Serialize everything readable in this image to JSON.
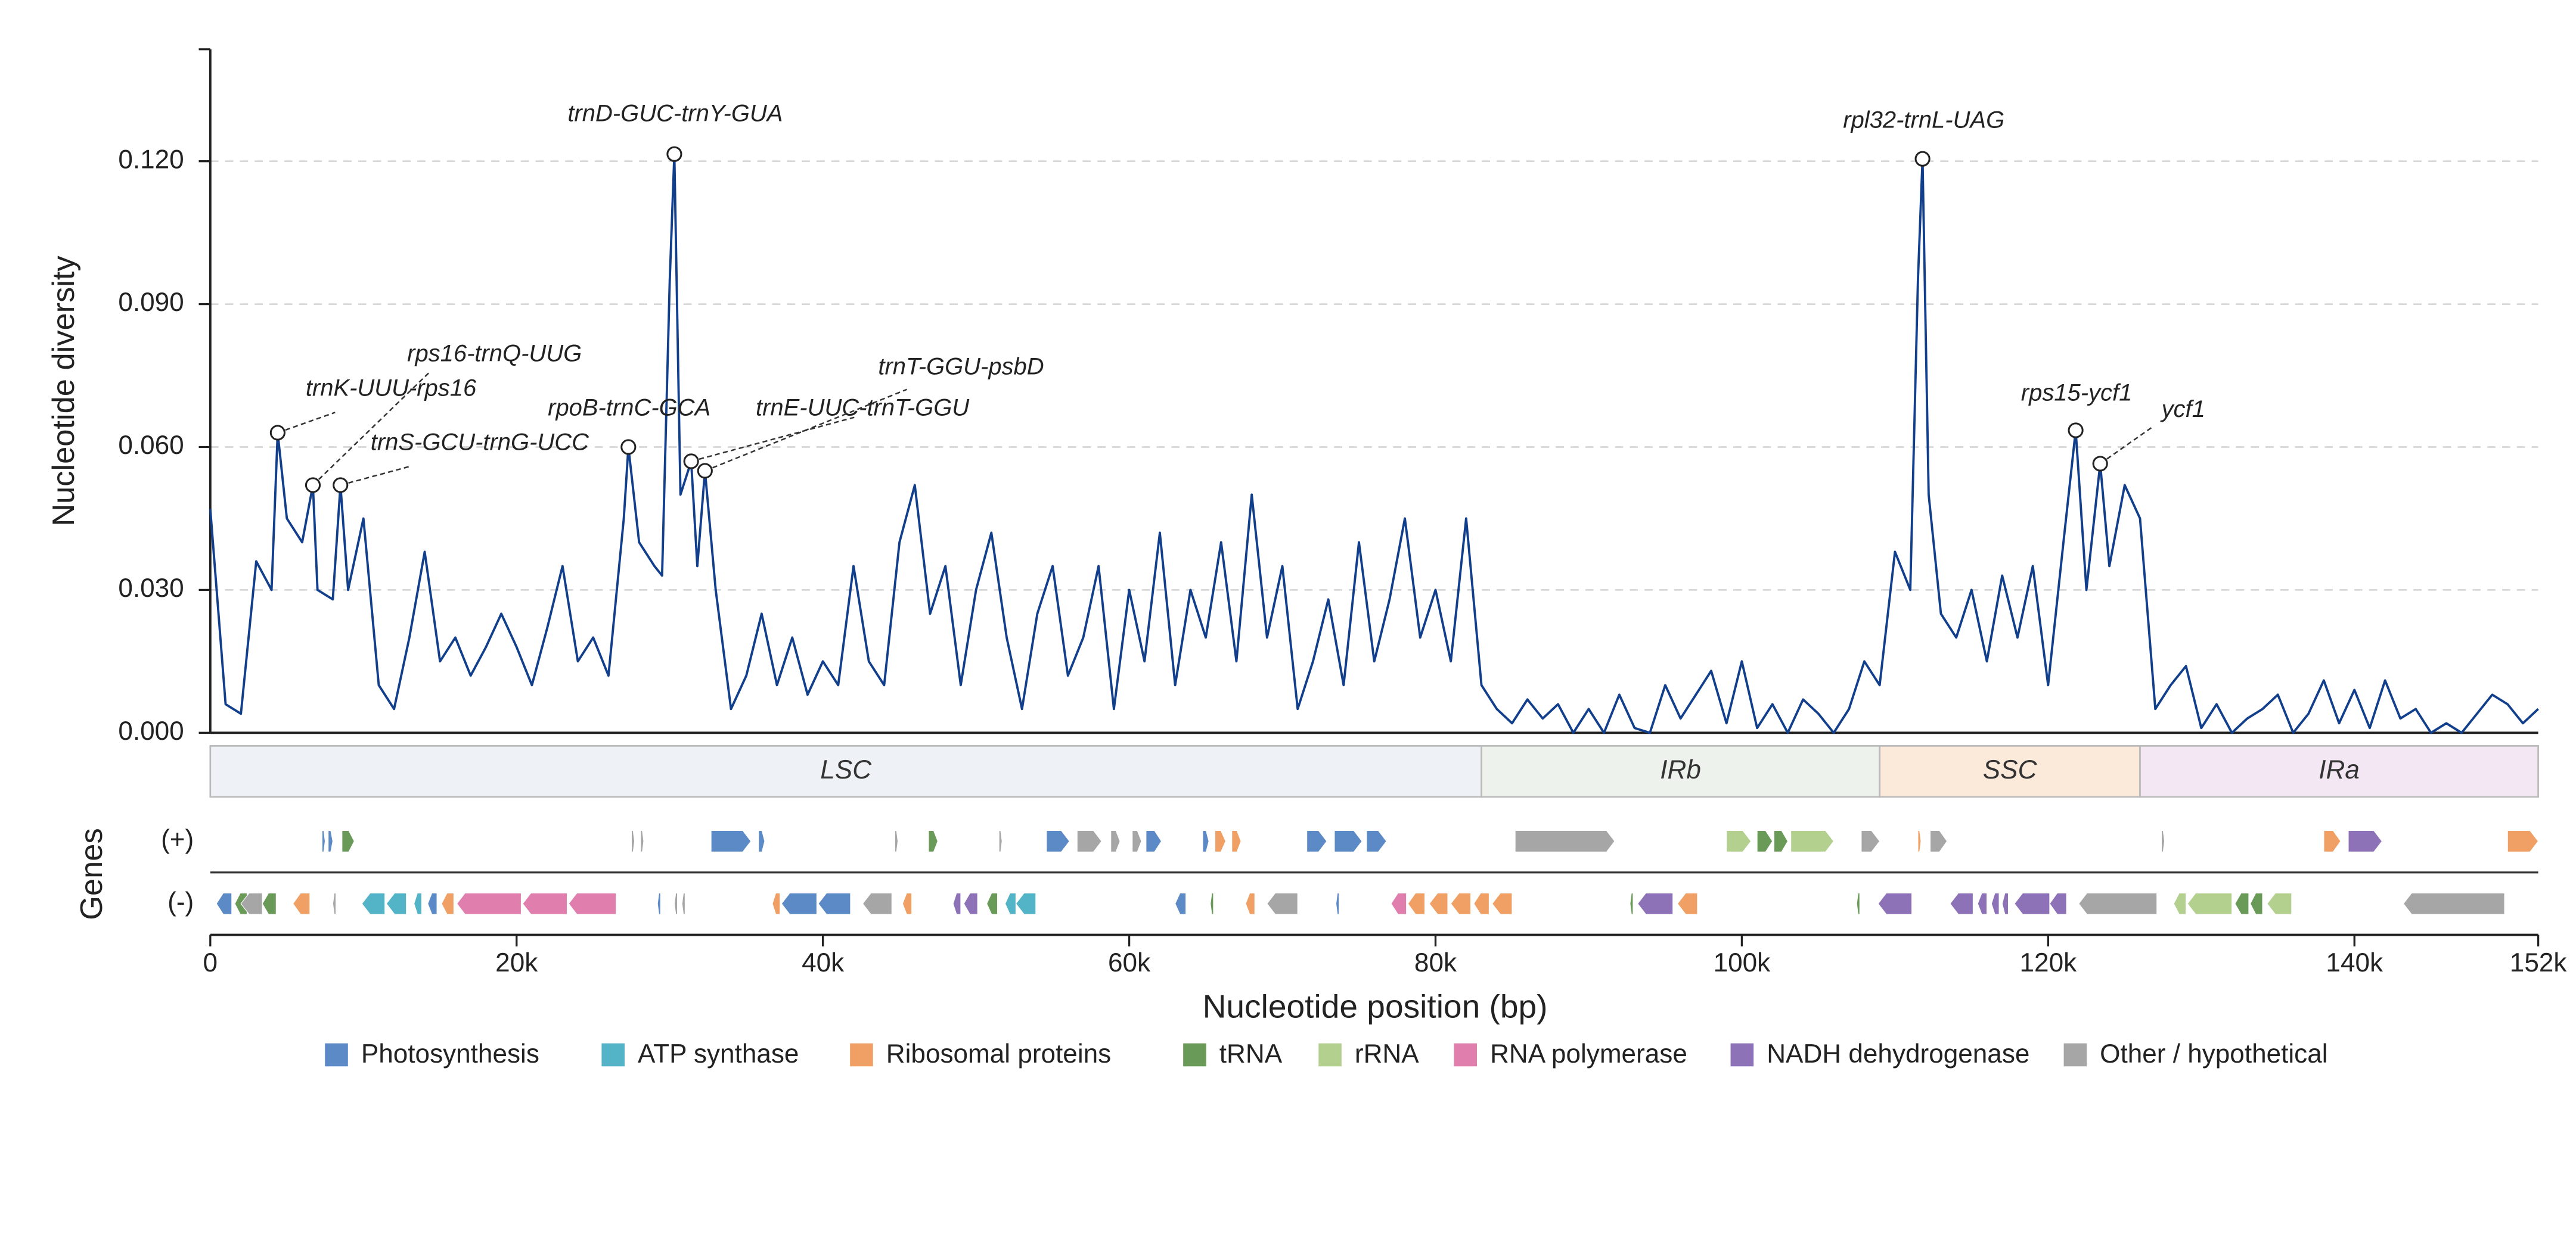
{
  "chart_data": {
    "type": "line",
    "ylabel": "Nucleotide diversity",
    "xlabel": "Nucleotide position (bp)",
    "color": "#123f8c",
    "grid": true,
    "xlim": [
      0,
      152000
    ],
    "ylim": [
      0,
      0.1435
    ],
    "xticks": [
      0,
      {
        "value": 20000,
        "label": "20k"
      },
      {
        "value": 40000,
        "label": "40k"
      },
      {
        "value": 60000,
        "label": "60k"
      },
      {
        "value": 80000,
        "label": "80k"
      },
      {
        "value": 100000,
        "label": "100k"
      },
      {
        "value": 120000,
        "label": "120k"
      },
      {
        "value": 140000,
        "label": "140k"
      },
      {
        "value": 152000,
        "label": "152k"
      }
    ],
    "yticks": [
      {
        "value": 0,
        "label": "0.000"
      },
      {
        "value": 0.03,
        "label": "0.030"
      },
      {
        "value": 0.06,
        "label": "0.060"
      },
      {
        "value": 0.09,
        "label": "0.090"
      },
      {
        "value": 0.12,
        "label": "0.120"
      }
    ],
    "x": [
      0,
      1000,
      2000,
      3000,
      4000,
      4400,
      5000,
      6000,
      6700,
      7000,
      8000,
      8500,
      9000,
      10000,
      11000,
      12000,
      13000,
      14000,
      15000,
      16000,
      17000,
      18000,
      19000,
      20000,
      21000,
      22000,
      23000,
      24000,
      25000,
      26000,
      27000,
      27300,
      28000,
      29000,
      29500,
      30000,
      30300,
      30700,
      31400,
      31800,
      32300,
      33000,
      34000,
      35000,
      36000,
      37000,
      38000,
      39000,
      40000,
      41000,
      42000,
      43000,
      44000,
      45000,
      46000,
      47000,
      48000,
      49000,
      50000,
      51000,
      52000,
      53000,
      54000,
      55000,
      56000,
      57000,
      58000,
      59000,
      60000,
      61000,
      62000,
      63000,
      64000,
      65000,
      66000,
      67000,
      68000,
      69000,
      70000,
      71000,
      72000,
      73000,
      74000,
      75000,
      76000,
      77000,
      78000,
      79000,
      80000,
      81000,
      82000,
      83000,
      84000,
      85000,
      86000,
      87000,
      88000,
      89000,
      90000,
      91000,
      92000,
      93000,
      94000,
      95000,
      96000,
      97000,
      98000,
      99000,
      100000,
      101000,
      102000,
      103000,
      104000,
      105000,
      106000,
      107000,
      108000,
      109000,
      110000,
      111000,
      111500,
      111800,
      112200,
      113000,
      114000,
      115000,
      116000,
      117000,
      118000,
      119000,
      120000,
      121000,
      121800,
      122500,
      123400,
      124000,
      125000,
      126000,
      127000,
      128000,
      129000,
      130000,
      131000,
      132000,
      133000,
      134000,
      135000,
      136000,
      137000,
      138000,
      139000,
      140000,
      141000,
      142000,
      143000,
      144000,
      145000,
      146000,
      147000,
      148000,
      149000,
      150000,
      151000,
      152000
    ],
    "values": [
      0.047,
      0.006,
      0.004,
      0.036,
      0.03,
      0.063,
      0.045,
      0.04,
      0.052,
      0.03,
      0.028,
      0.052,
      0.03,
      0.045,
      0.01,
      0.005,
      0.02,
      0.038,
      0.015,
      0.02,
      0.012,
      0.018,
      0.025,
      0.018,
      0.01,
      0.022,
      0.035,
      0.015,
      0.02,
      0.012,
      0.045,
      0.06,
      0.04,
      0.035,
      0.033,
      0.095,
      0.1215,
      0.05,
      0.057,
      0.035,
      0.055,
      0.03,
      0.005,
      0.012,
      0.025,
      0.01,
      0.02,
      0.008,
      0.015,
      0.01,
      0.035,
      0.015,
      0.01,
      0.04,
      0.052,
      0.025,
      0.035,
      0.01,
      0.03,
      0.042,
      0.02,
      0.005,
      0.025,
      0.035,
      0.012,
      0.02,
      0.035,
      0.005,
      0.03,
      0.015,
      0.042,
      0.01,
      0.03,
      0.02,
      0.04,
      0.015,
      0.05,
      0.02,
      0.035,
      0.005,
      0.015,
      0.028,
      0.01,
      0.04,
      0.015,
      0.028,
      0.045,
      0.02,
      0.03,
      0.015,
      0.045,
      0.01,
      0.005,
      0.002,
      0.007,
      0.003,
      0.006,
      0.0,
      0.005,
      0.0,
      0.008,
      0.001,
      0.0,
      0.01,
      0.003,
      0.008,
      0.013,
      0.002,
      0.015,
      0.001,
      0.006,
      0.0,
      0.007,
      0.004,
      0.0,
      0.005,
      0.015,
      0.01,
      0.038,
      0.03,
      0.095,
      0.1205,
      0.05,
      0.025,
      0.02,
      0.03,
      0.015,
      0.033,
      0.02,
      0.035,
      0.01,
      0.04,
      0.0635,
      0.03,
      0.0565,
      0.035,
      0.052,
      0.045,
      0.005,
      0.01,
      0.014,
      0.001,
      0.006,
      0.0,
      0.003,
      0.005,
      0.008,
      0.0,
      0.004,
      0.011,
      0.002,
      0.009,
      0.001,
      0.011,
      0.003,
      0.005,
      0.0,
      0.002,
      0.0,
      0.004,
      0.008,
      0.006,
      0.002,
      0.005
    ],
    "annotations": [
      {
        "label": "trnK-UUU-rps16",
        "x": 4400,
        "y": 0.063
      },
      {
        "label": "rps16-trnQ-UUG",
        "x": 6700,
        "y": 0.052
      },
      {
        "label": "trnS-GCU-trnG-UCC",
        "x": 8500,
        "y": 0.052
      },
      {
        "label": "rpoB-trnC-GCA",
        "x": 27300,
        "y": 0.06
      },
      {
        "label": "trnD-GUC-trnY-GUA",
        "x": 30300,
        "y": 0.1215
      },
      {
        "label": "trnE-UUC-trnT-GGU",
        "x": 31400,
        "y": 0.057
      },
      {
        "label": "trnT-GGU-psbD",
        "x": 32300,
        "y": 0.055
      },
      {
        "label": "rpl32-trnL-UAG",
        "x": 111800,
        "y": 0.1205
      },
      {
        "label": "rps15-ycf1",
        "x": 121800,
        "y": 0.0635
      },
      {
        "label": "ycf1",
        "x": 123400,
        "y": 0.0565
      }
    ],
    "regions": [
      {
        "label": "LSC",
        "start": 0,
        "end": 83000,
        "color": "#eef2f6"
      },
      {
        "label": "IRb",
        "start": 83000,
        "end": 109000,
        "color": "#edf3ec"
      },
      {
        "label": "SSC",
        "start": 109000,
        "end": 126000,
        "color": "#fbe9da"
      },
      {
        "label": "IRa",
        "start": 126000,
        "end": 152000,
        "color": "#f2e7f2"
      }
    ],
    "gene_axis_label": "Genes",
    "gene_rows": [
      "(+)",
      "(-)"
    ],
    "legend": [
      {
        "name": "Photosynthesis",
        "color": "#5b8ac6"
      },
      {
        "name": "ATP synthase",
        "color": "#52b4c6"
      },
      {
        "name": "Ribosomal proteins",
        "color": "#f0a064"
      },
      {
        "name": "tRNA",
        "color": "#6a9a58"
      },
      {
        "name": "rRNA",
        "color": "#b3d08f"
      },
      {
        "name": "RNA polymerase",
        "color": "#e07fae"
      },
      {
        "name": "NADH dehydrogenase",
        "color": "#8e72b8"
      },
      {
        "name": "Other / hypothetical",
        "color": "#a6a6a6"
      }
    ],
    "genes": [
      {
        "start": 7300,
        "end": 7500,
        "row": 0,
        "category": 0
      },
      {
        "start": 7700,
        "end": 8000,
        "row": 0,
        "category": 0
      },
      {
        "start": 8600,
        "end": 9400,
        "row": 0,
        "category": 3
      },
      {
        "start": 27500,
        "end": 27700,
        "row": 0,
        "category": 7
      },
      {
        "start": 28100,
        "end": 28300,
        "row": 0,
        "category": 7
      },
      {
        "start": 32700,
        "end": 35300,
        "row": 0,
        "category": 0
      },
      {
        "start": 35800,
        "end": 36200,
        "row": 0,
        "category": 0
      },
      {
        "start": 44700,
        "end": 44900,
        "row": 0,
        "category": 7
      },
      {
        "start": 46900,
        "end": 47500,
        "row": 0,
        "category": 3
      },
      {
        "start": 51500,
        "end": 51700,
        "row": 0,
        "category": 7
      },
      {
        "start": 54600,
        "end": 56100,
        "row": 0,
        "category": 0
      },
      {
        "start": 56600,
        "end": 58200,
        "row": 0,
        "category": 7
      },
      {
        "start": 58800,
        "end": 59400,
        "row": 0,
        "category": 7
      },
      {
        "start": 60200,
        "end": 60800,
        "row": 0,
        "category": 7
      },
      {
        "start": 61100,
        "end": 62100,
        "row": 0,
        "category": 0
      },
      {
        "start": 64800,
        "end": 65200,
        "row": 0,
        "category": 0
      },
      {
        "start": 65600,
        "end": 66300,
        "row": 0,
        "category": 2
      },
      {
        "start": 66700,
        "end": 67300,
        "row": 0,
        "category": 2
      },
      {
        "start": 71600,
        "end": 72900,
        "row": 0,
        "category": 0
      },
      {
        "start": 73400,
        "end": 75200,
        "row": 0,
        "category": 0
      },
      {
        "start": 75500,
        "end": 76800,
        "row": 0,
        "category": 0
      },
      {
        "start": 85200,
        "end": 91700,
        "row": 0,
        "category": 7
      },
      {
        "start": 99000,
        "end": 100600,
        "row": 0,
        "category": 4
      },
      {
        "start": 101000,
        "end": 102000,
        "row": 0,
        "category": 3
      },
      {
        "start": 102100,
        "end": 103000,
        "row": 0,
        "category": 3
      },
      {
        "start": 103200,
        "end": 106000,
        "row": 0,
        "category": 4
      },
      {
        "start": 107800,
        "end": 109000,
        "row": 0,
        "category": 7
      },
      {
        "start": 111500,
        "end": 111700,
        "row": 0,
        "category": 2
      },
      {
        "start": 112300,
        "end": 113400,
        "row": 0,
        "category": 7
      },
      {
        "start": 127400,
        "end": 127600,
        "row": 0,
        "category": 7
      },
      {
        "start": 138000,
        "end": 139100,
        "row": 0,
        "category": 2
      },
      {
        "start": 139600,
        "end": 141800,
        "row": 0,
        "category": 6
      },
      {
        "start": 150000,
        "end": 152000,
        "row": 0,
        "category": 2
      },
      {
        "start": 400,
        "end": 1400,
        "row": 1,
        "category": 0
      },
      {
        "start": 1600,
        "end": 2400,
        "row": 1,
        "category": 3
      },
      {
        "start": 2000,
        "end": 3400,
        "row": 1,
        "category": 7
      },
      {
        "start": 3400,
        "end": 4300,
        "row": 1,
        "category": 3
      },
      {
        "start": 5400,
        "end": 6500,
        "row": 1,
        "category": 2
      },
      {
        "start": 8000,
        "end": 8200,
        "row": 1,
        "category": 7
      },
      {
        "start": 9900,
        "end": 11400,
        "row": 1,
        "category": 1
      },
      {
        "start": 11500,
        "end": 12800,
        "row": 1,
        "category": 1
      },
      {
        "start": 13300,
        "end": 13800,
        "row": 1,
        "category": 1
      },
      {
        "start": 14200,
        "end": 14800,
        "row": 1,
        "category": 0
      },
      {
        "start": 15100,
        "end": 15900,
        "row": 1,
        "category": 2
      },
      {
        "start": 16100,
        "end": 20300,
        "row": 1,
        "category": 5
      },
      {
        "start": 20400,
        "end": 23300,
        "row": 1,
        "category": 5
      },
      {
        "start": 23400,
        "end": 26500,
        "row": 1,
        "category": 5
      },
      {
        "start": 29200,
        "end": 29400,
        "row": 1,
        "category": 0
      },
      {
        "start": 30300,
        "end": 30500,
        "row": 1,
        "category": 7
      },
      {
        "start": 30800,
        "end": 31000,
        "row": 1,
        "category": 7
      },
      {
        "start": 36700,
        "end": 37200,
        "row": 1,
        "category": 2
      },
      {
        "start": 37300,
        "end": 39600,
        "row": 1,
        "category": 0
      },
      {
        "start": 39700,
        "end": 41800,
        "row": 1,
        "category": 0
      },
      {
        "start": 42600,
        "end": 44500,
        "row": 1,
        "category": 7
      },
      {
        "start": 45200,
        "end": 45800,
        "row": 1,
        "category": 2
      },
      {
        "start": 48500,
        "end": 49000,
        "row": 1,
        "category": 6
      },
      {
        "start": 49200,
        "end": 50100,
        "row": 1,
        "category": 6
      },
      {
        "start": 50700,
        "end": 51400,
        "row": 1,
        "category": 3
      },
      {
        "start": 51900,
        "end": 52600,
        "row": 1,
        "category": 1
      },
      {
        "start": 52600,
        "end": 53900,
        "row": 1,
        "category": 1
      },
      {
        "start": 63000,
        "end": 63700,
        "row": 1,
        "category": 0
      },
      {
        "start": 65300,
        "end": 65500,
        "row": 1,
        "category": 3
      },
      {
        "start": 67600,
        "end": 68200,
        "row": 1,
        "category": 2
      },
      {
        "start": 69000,
        "end": 71000,
        "row": 1,
        "category": 7
      },
      {
        "start": 73500,
        "end": 73700,
        "row": 1,
        "category": 0
      },
      {
        "start": 77100,
        "end": 78100,
        "row": 1,
        "category": 5
      },
      {
        "start": 78200,
        "end": 79300,
        "row": 1,
        "category": 2
      },
      {
        "start": 79600,
        "end": 80800,
        "row": 1,
        "category": 2
      },
      {
        "start": 81000,
        "end": 82300,
        "row": 1,
        "category": 2
      },
      {
        "start": 82500,
        "end": 83500,
        "row": 1,
        "category": 2
      },
      {
        "start": 83700,
        "end": 85000,
        "row": 1,
        "category": 2
      },
      {
        "start": 92700,
        "end": 92900,
        "row": 1,
        "category": 3
      },
      {
        "start": 93200,
        "end": 95500,
        "row": 1,
        "category": 6
      },
      {
        "start": 95800,
        "end": 97100,
        "row": 1,
        "category": 2
      },
      {
        "start": 107500,
        "end": 107700,
        "row": 1,
        "category": 3
      },
      {
        "start": 108900,
        "end": 111100,
        "row": 1,
        "category": 6
      },
      {
        "start": 113600,
        "end": 115100,
        "row": 1,
        "category": 6
      },
      {
        "start": 115400,
        "end": 116000,
        "row": 1,
        "category": 6
      },
      {
        "start": 116300,
        "end": 116800,
        "row": 1,
        "category": 6
      },
      {
        "start": 117000,
        "end": 117400,
        "row": 1,
        "category": 6
      },
      {
        "start": 117800,
        "end": 120100,
        "row": 1,
        "category": 6
      },
      {
        "start": 120100,
        "end": 121200,
        "row": 1,
        "category": 6
      },
      {
        "start": 122000,
        "end": 127100,
        "row": 1,
        "category": 7
      },
      {
        "start": 128200,
        "end": 129000,
        "row": 1,
        "category": 4
      },
      {
        "start": 129100,
        "end": 132000,
        "row": 1,
        "category": 4
      },
      {
        "start": 132200,
        "end": 133100,
        "row": 1,
        "category": 3
      },
      {
        "start": 133200,
        "end": 134000,
        "row": 1,
        "category": 3
      },
      {
        "start": 134300,
        "end": 135900,
        "row": 1,
        "category": 4
      },
      {
        "start": 143200,
        "end": 149800,
        "row": 1,
        "category": 7
      }
    ]
  }
}
